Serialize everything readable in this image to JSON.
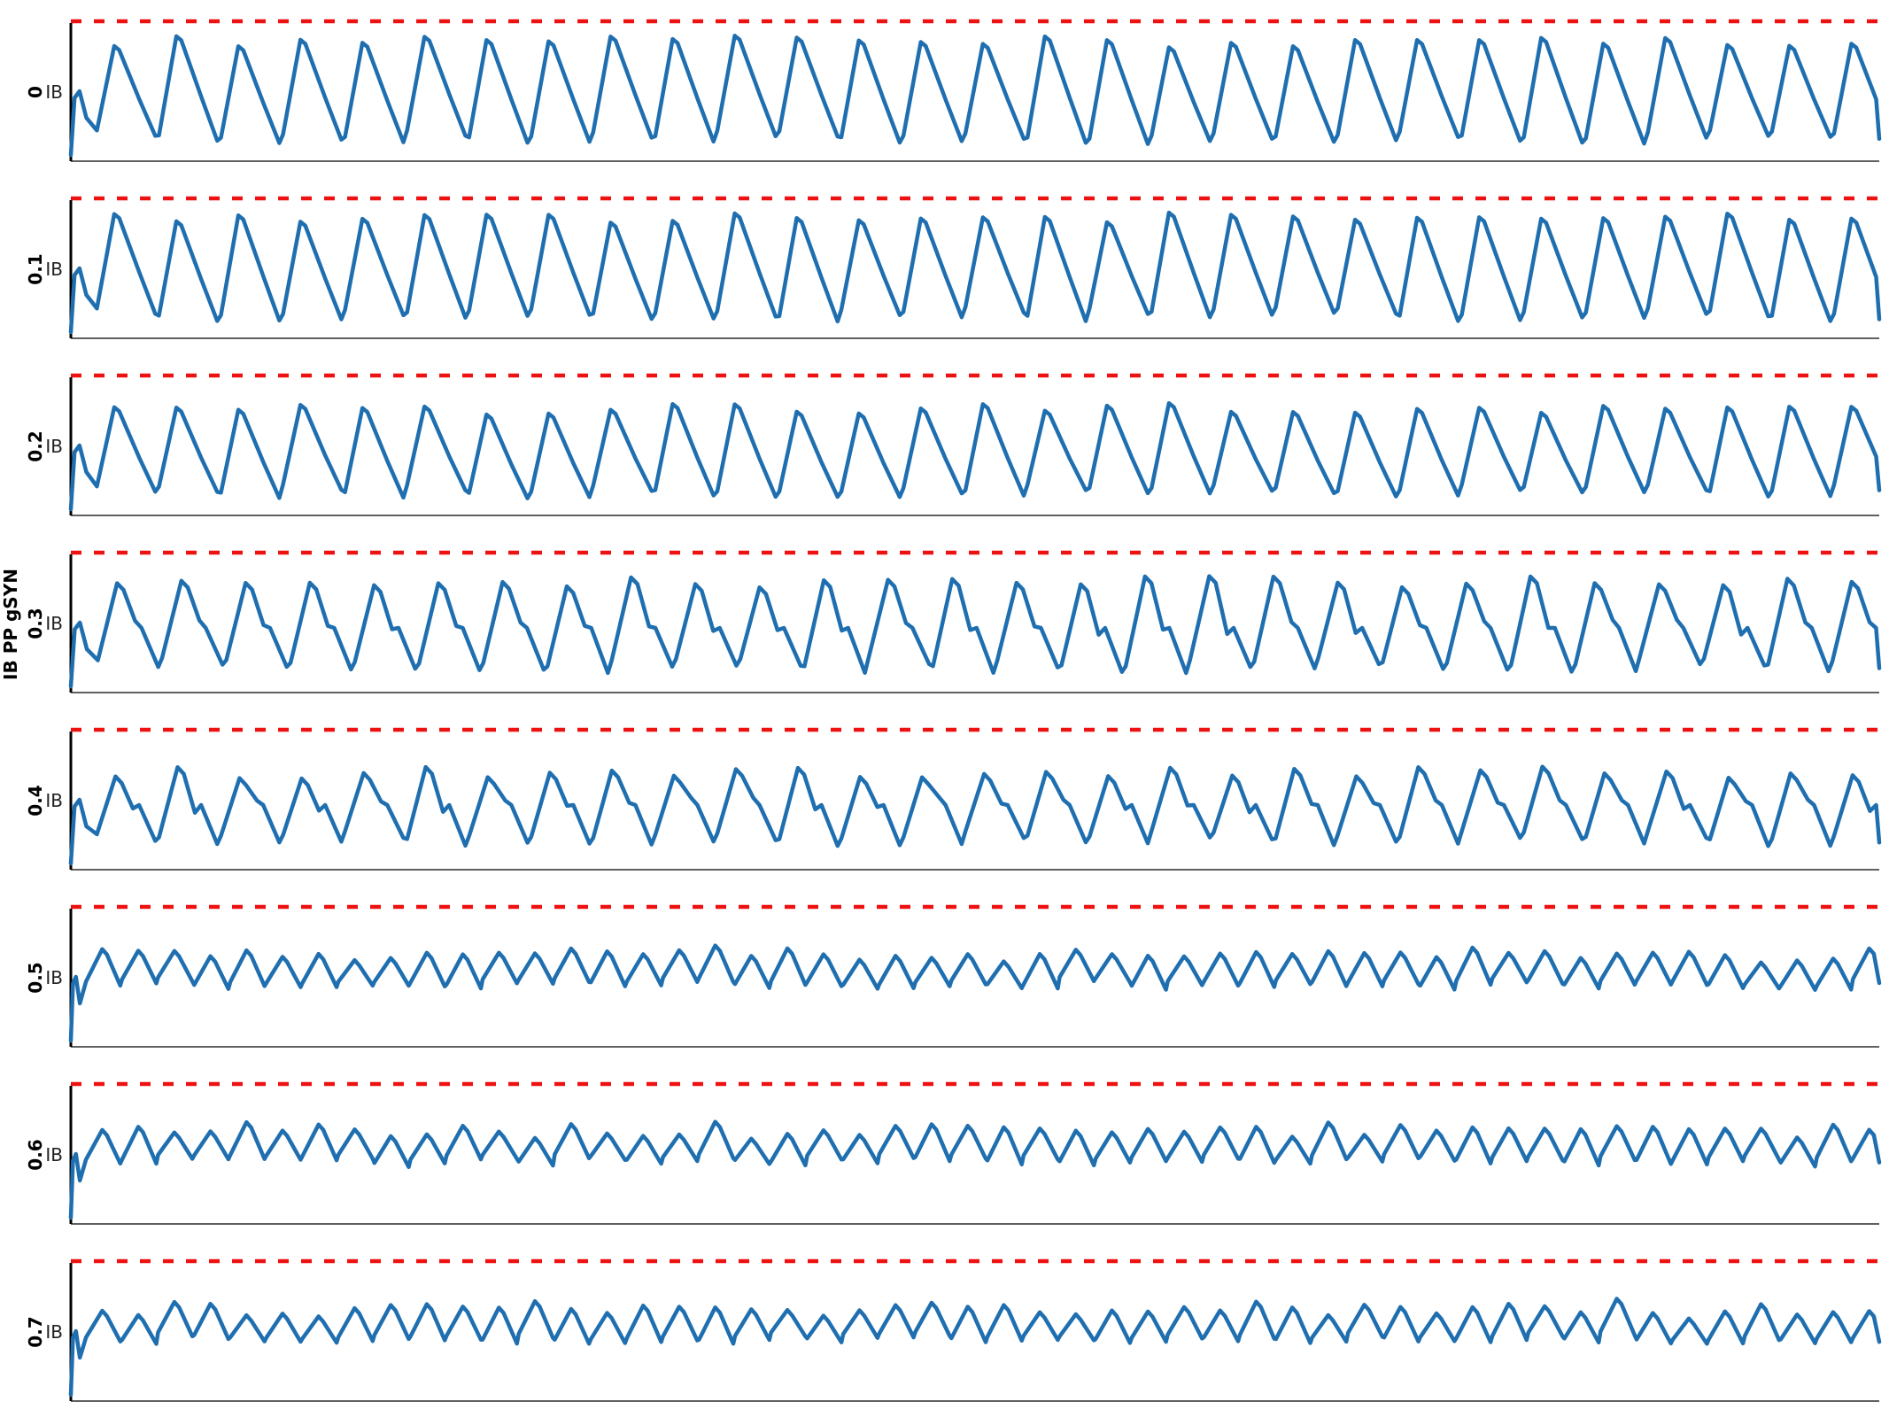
{
  "chart_data": {
    "type": "line",
    "ylabel": "IB PP gSYN",
    "colors": {
      "trace": "#1f6fb0",
      "threshold": "#ee1111"
    },
    "grid": false,
    "legend": "none",
    "x_range": [
      0,
      1
    ],
    "panels": [
      {
        "label": "0",
        "tick_label": "IB",
        "cycles": 29,
        "style": "sawtooth",
        "amp": 0.92,
        "trough_drop": 0.1
      },
      {
        "label": "0.1",
        "tick_label": "IB",
        "cycles": 29,
        "style": "sawtooth",
        "amp": 0.92,
        "trough_drop": 0.1
      },
      {
        "label": "0.2",
        "tick_label": "IB",
        "cycles": 29,
        "style": "sawtooth",
        "amp": 0.82,
        "trough_drop": 0.1
      },
      {
        "label": "0.3",
        "tick_label": "IB",
        "cycles": 28,
        "style": "shoulder",
        "amp": 0.85,
        "trough_drop": 0.12
      },
      {
        "label": "0.4",
        "tick_label": "IB",
        "cycles": 29,
        "style": "shoulder",
        "amp": 0.75,
        "trough_drop": 0.15
      },
      {
        "label": "0.5",
        "tick_label": "IB",
        "cycles": 50,
        "style": "wave",
        "amp": 0.28,
        "trough_drop": 0.4
      },
      {
        "label": "0.6",
        "tick_label": "IB",
        "cycles": 50,
        "style": "wave",
        "amp": 0.28,
        "trough_drop": 0.4
      },
      {
        "label": "0.7",
        "tick_label": "IB",
        "cycles": 50,
        "style": "wave",
        "amp": 0.28,
        "trough_drop": 0.4
      }
    ]
  }
}
